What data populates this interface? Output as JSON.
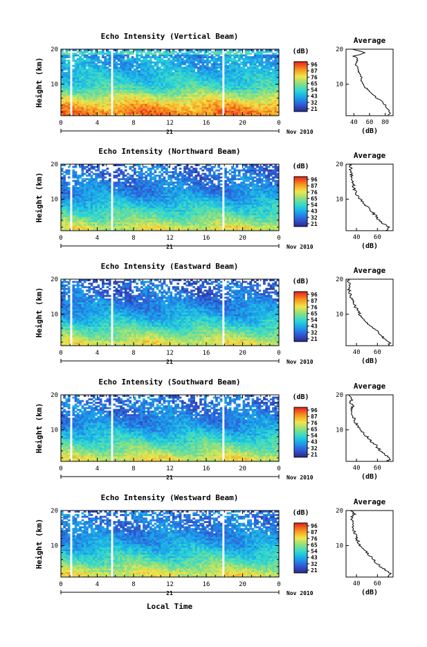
{
  "figure": {
    "xlabel": "Local Time",
    "date_label": "Nov 2010",
    "day_label": "21",
    "ylabel": "Height (km)",
    "colorbar_unit": "(dB)",
    "colorbar_ticks": [
      "96",
      "87",
      "76",
      "65",
      "54",
      "43",
      "32",
      "21"
    ],
    "average_title": "Average",
    "average_xlabel": "(dB)"
  },
  "chart_data": [
    {
      "type": "heatmap",
      "title": "Echo Intensity (Vertical Beam)",
      "x_ticks": [
        "0",
        "4",
        "8",
        "12",
        "16",
        "20",
        "0"
      ],
      "xlim": [
        0,
        24
      ],
      "y_ticks": [
        "10",
        "20"
      ],
      "ylim": [
        1,
        20
      ],
      "zlim": [
        21,
        96
      ],
      "profile_ticks": [
        "40",
        "60",
        "80"
      ],
      "profile_xlim": [
        30,
        90
      ],
      "profile": {
        "height": [
          1,
          2,
          3,
          4,
          5,
          6,
          7,
          8,
          9,
          10,
          11,
          12,
          13,
          14,
          15,
          16,
          17,
          18,
          19,
          20
        ],
        "db": [
          84,
          86,
          83,
          80,
          76,
          70,
          65,
          60,
          55,
          52,
          50,
          49,
          47,
          45,
          44,
          42,
          45,
          40,
          55,
          38
        ]
      }
    },
    {
      "type": "heatmap",
      "title": "Echo Intensity (Northward Beam)",
      "x_ticks": [
        "0",
        "4",
        "8",
        "12",
        "16",
        "20",
        "0"
      ],
      "xlim": [
        0,
        24
      ],
      "y_ticks": [
        "10",
        "20"
      ],
      "ylim": [
        1,
        20
      ],
      "zlim": [
        21,
        96
      ],
      "profile_ticks": [
        "40",
        "60"
      ],
      "profile_xlim": [
        30,
        75
      ],
      "profile": {
        "height": [
          1,
          2,
          3,
          4,
          5,
          6,
          7,
          8,
          9,
          10,
          11,
          12,
          13,
          14,
          15,
          16,
          17,
          18,
          19,
          20
        ],
        "db": [
          69,
          71,
          66,
          62,
          59,
          56,
          53,
          50,
          47,
          44,
          41,
          39,
          38,
          37,
          36,
          35,
          35,
          34,
          35,
          33
        ]
      }
    },
    {
      "type": "heatmap",
      "title": "Echo Intensity (Eastward Beam)",
      "x_ticks": [
        "0",
        "4",
        "8",
        "12",
        "16",
        "20",
        "0"
      ],
      "xlim": [
        0,
        24
      ],
      "y_ticks": [
        "10",
        "20"
      ],
      "ylim": [
        1,
        20
      ],
      "zlim": [
        21,
        96
      ],
      "profile_ticks": [
        "40",
        "60"
      ],
      "profile_xlim": [
        30,
        75
      ],
      "profile": {
        "height": [
          1,
          2,
          3,
          4,
          5,
          6,
          7,
          8,
          9,
          10,
          11,
          12,
          13,
          14,
          15,
          16,
          17,
          18,
          19,
          20
        ],
        "db": [
          70,
          72,
          67,
          63,
          60,
          56,
          52,
          49,
          46,
          43,
          41,
          39,
          38,
          36,
          35,
          34,
          33,
          34,
          33,
          32
        ]
      }
    },
    {
      "type": "heatmap",
      "title": "Echo Intensity (Southward Beam)",
      "x_ticks": [
        "0",
        "4",
        "8",
        "12",
        "16",
        "20",
        "0"
      ],
      "xlim": [
        0,
        24
      ],
      "y_ticks": [
        "10",
        "20"
      ],
      "ylim": [
        1,
        20
      ],
      "zlim": [
        21,
        96
      ],
      "profile_ticks": [
        "40",
        "60"
      ],
      "profile_xlim": [
        30,
        75
      ],
      "profile": {
        "height": [
          1,
          2,
          3,
          4,
          5,
          6,
          7,
          8,
          9,
          10,
          11,
          12,
          13,
          14,
          15,
          16,
          17,
          18,
          19,
          20
        ],
        "db": [
          70,
          72,
          67,
          63,
          60,
          57,
          53,
          50,
          47,
          44,
          41,
          39,
          38,
          37,
          36,
          35,
          37,
          34,
          36,
          33
        ]
      }
    },
    {
      "type": "heatmap",
      "title": "Echo Intensity (Westward Beam)",
      "x_ticks": [
        "0",
        "4",
        "8",
        "12",
        "16",
        "20",
        "0"
      ],
      "xlim": [
        0,
        24
      ],
      "y_ticks": [
        "10",
        "20"
      ],
      "ylim": [
        1,
        20
      ],
      "zlim": [
        21,
        96
      ],
      "profile_ticks": [
        "40",
        "60"
      ],
      "profile_xlim": [
        30,
        75
      ],
      "profile": {
        "height": [
          1,
          2,
          3,
          4,
          5,
          6,
          7,
          8,
          9,
          10,
          11,
          12,
          13,
          14,
          15,
          16,
          17,
          18,
          19,
          20
        ],
        "db": [
          70,
          72,
          67,
          63,
          59,
          56,
          53,
          50,
          47,
          44,
          42,
          40,
          39,
          38,
          37,
          36,
          36,
          35,
          38,
          34
        ]
      }
    }
  ]
}
